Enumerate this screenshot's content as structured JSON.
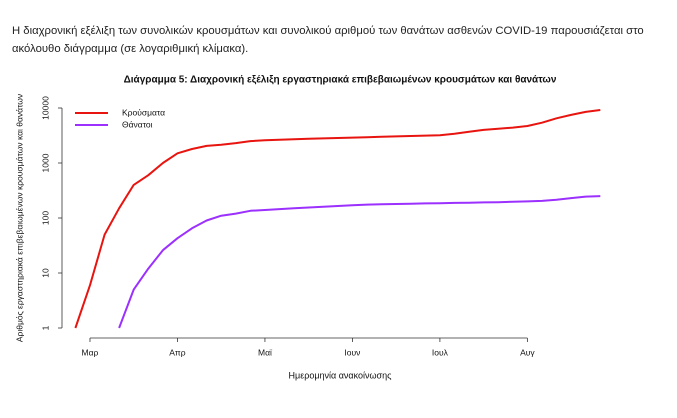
{
  "paragraph": "Η διαχρονική εξέλιξη των συνολικών κρουσμάτων και συνολικού αριθμού των θανάτων ασθενών COVID-19 παρουσιάζεται στο ακόλουθο διάγραμμα (σε λογαριθμική κλίμακα).",
  "chart_data": {
    "type": "line",
    "title": "Διάγραμμα 5: Διαχρονική εξέλιξη εργαστηριακά επιβεβαιωμένων κρουσμάτων και θανάτων",
    "xlabel": "Ημερομηνία ανακοίνωσης",
    "ylabel": "Αριθμός εργαστηριακά επιβεβαιωμένων κρουσμάτων και θανάτων",
    "categories": [
      null,
      "Μαρ",
      null,
      null,
      null,
      null,
      null,
      "Απρ",
      null,
      null,
      null,
      null,
      null,
      "Μαϊ",
      null,
      null,
      null,
      null,
      null,
      "Ιουν",
      null,
      null,
      null,
      null,
      null,
      "Ιουλ",
      null,
      null,
      null,
      null,
      null,
      "Αυγ",
      null,
      null,
      null,
      null,
      null
    ],
    "series": [
      {
        "name": "Κρούσματα",
        "color": "#e8140f",
        "values": [
          1,
          6,
          50,
          150,
          400,
          600,
          1000,
          1500,
          1800,
          2050,
          2150,
          2300,
          2500,
          2600,
          2650,
          2700,
          2750,
          2800,
          2850,
          2900,
          2950,
          3000,
          3050,
          3100,
          3150,
          3200,
          3400,
          3700,
          4000,
          4200,
          4400,
          4700,
          5400,
          6500,
          7500,
          8500,
          9200
        ]
      },
      {
        "name": "Θάνατοι",
        "color": "#9b30ff",
        "values": [
          null,
          null,
          null,
          1,
          5,
          12,
          26,
          43,
          65,
          90,
          110,
          120,
          135,
          140,
          145,
          150,
          155,
          160,
          165,
          170,
          175,
          178,
          180,
          182,
          184,
          186,
          188,
          190,
          192,
          194,
          197,
          200,
          205,
          215,
          230,
          245,
          250
        ]
      }
    ],
    "log_scale": true,
    "ylim": [
      1,
      10000
    ],
    "yticks": [
      1,
      10,
      100,
      1000,
      10000
    ],
    "legend": "upper left"
  }
}
